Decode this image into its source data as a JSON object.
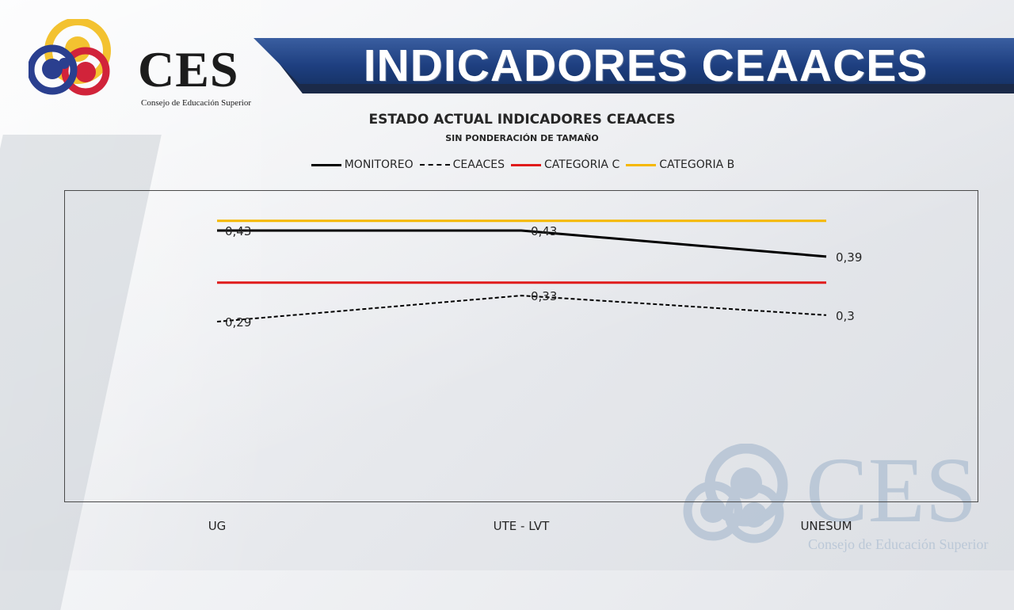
{
  "logo": {
    "text": "CES",
    "subtitle": "Consejo de Educación Superior"
  },
  "banner": {
    "title": "INDICADORES CEAACES"
  },
  "watermark": {
    "text": "CES",
    "subtitle": "Consejo de Educación Superior"
  },
  "colors": {
    "banner": "#1e3f80",
    "monitoreo": "#000000",
    "ceaaces": "#000000",
    "categoria_c": "#e01b1b",
    "categoria_b": "#f5b800",
    "logo_yellow": "#f3c230",
    "logo_red": "#d1233a",
    "logo_blue": "#2a3f8f"
  },
  "chart_data": {
    "type": "line",
    "title": "ESTADO ACTUAL INDICADORES CEAACES",
    "subtitle": "SIN PONDERACIÓN DE TAMAÑO",
    "categories": [
      "UG",
      "UTE - LVT",
      "UNESUM"
    ],
    "series": [
      {
        "name": "MONITOREO",
        "values": [
          0.43,
          0.43,
          0.39
        ],
        "labels": [
          "0,43",
          "0,43",
          "0,39"
        ],
        "style": "solid",
        "color": "#000000"
      },
      {
        "name": "CEAACES",
        "values": [
          0.29,
          0.33,
          0.3
        ],
        "labels": [
          "0,29",
          "0,33",
          "0,3"
        ],
        "style": "dashed",
        "color": "#000000"
      },
      {
        "name": "CATEGORIA C",
        "values": [
          0.35,
          0.35,
          0.35
        ],
        "style": "solid",
        "color": "#e01b1b"
      },
      {
        "name": "CATEGORIA B",
        "values": [
          0.445,
          0.445,
          0.445
        ],
        "style": "solid",
        "color": "#f5b800"
      }
    ],
    "legend_position": "top",
    "grid": false
  }
}
